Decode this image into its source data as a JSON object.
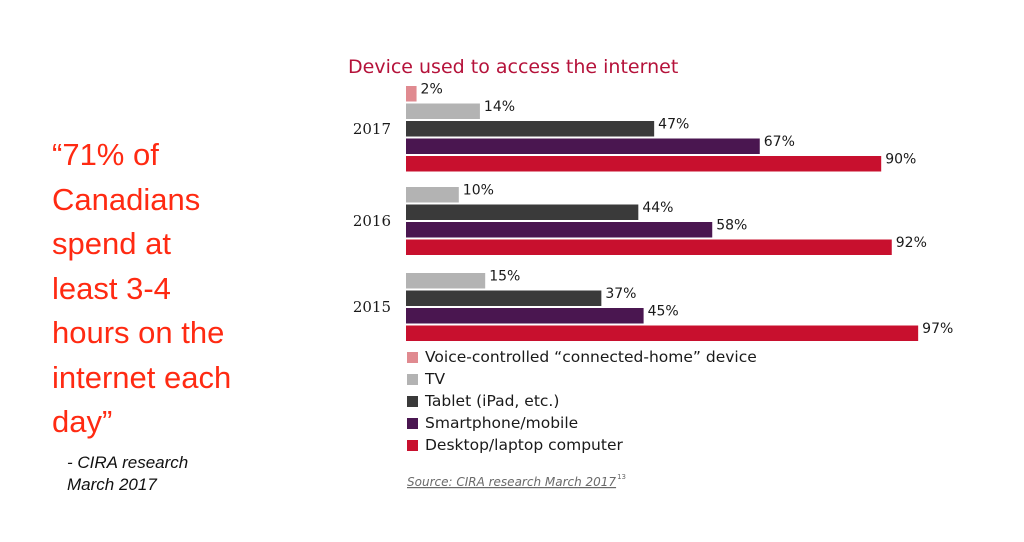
{
  "quote": {
    "text": "“71% of\nCanadians\nspend at\nleast 3-4\nhours on the\ninternet each\nday”",
    "attribution": "- CIRA research\nMarch 2017"
  },
  "chart_data": {
    "type": "bar",
    "orientation": "horizontal",
    "title": "Device used to access the internet",
    "categories": [
      "2017",
      "2016",
      "2015"
    ],
    "series": [
      {
        "name": "Voice-controlled “connected-home” device",
        "color": "#e08a90",
        "values": [
          2,
          null,
          null
        ]
      },
      {
        "name": "TV",
        "color": "#b3b3b3",
        "values": [
          14,
          10,
          15
        ]
      },
      {
        "name": "Tablet (iPad, etc.)",
        "color": "#3a3a3a",
        "values": [
          47,
          44,
          37
        ]
      },
      {
        "name": "Smartphone/mobile",
        "color": "#4a1650",
        "values": [
          67,
          58,
          45
        ]
      },
      {
        "name": "Desktop/laptop computer",
        "color": "#c8102e",
        "values": [
          90,
          92,
          97
        ]
      }
    ],
    "value_suffix": "%",
    "xlim": [
      0,
      100
    ],
    "legend_position": "bottom-left",
    "source": "Source: CIRA research March 2017",
    "source_sup": "13",
    "title_color": "#b5123a"
  }
}
